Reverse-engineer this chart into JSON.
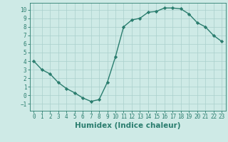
{
  "x": [
    0,
    1,
    2,
    3,
    4,
    5,
    6,
    7,
    8,
    9,
    10,
    11,
    12,
    13,
    14,
    15,
    16,
    17,
    18,
    19,
    20,
    21,
    22,
    23
  ],
  "y": [
    4,
    3,
    2.5,
    1.5,
    0.8,
    0.3,
    -0.3,
    -0.7,
    -0.5,
    1.5,
    4.5,
    8,
    8.8,
    9,
    9.7,
    9.8,
    10.2,
    10.2,
    10.1,
    9.5,
    8.5,
    8,
    7,
    6.3
  ],
  "line_color": "#2a7d6e",
  "marker": "D",
  "marker_size": 2.2,
  "bg_color": "#ceeae6",
  "grid_color": "#aacfcc",
  "xlabel": "Humidex (Indice chaleur)",
  "ylim": [
    -1.8,
    10.8
  ],
  "xlim": [
    -0.5,
    23.5
  ],
  "yticks": [
    -1,
    0,
    1,
    2,
    3,
    4,
    5,
    6,
    7,
    8,
    9,
    10
  ],
  "xticks": [
    0,
    1,
    2,
    3,
    4,
    5,
    6,
    7,
    8,
    9,
    10,
    11,
    12,
    13,
    14,
    15,
    16,
    17,
    18,
    19,
    20,
    21,
    22,
    23
  ],
  "tick_fontsize": 5.5,
  "xlabel_fontsize": 7.5,
  "linewidth": 1.0
}
